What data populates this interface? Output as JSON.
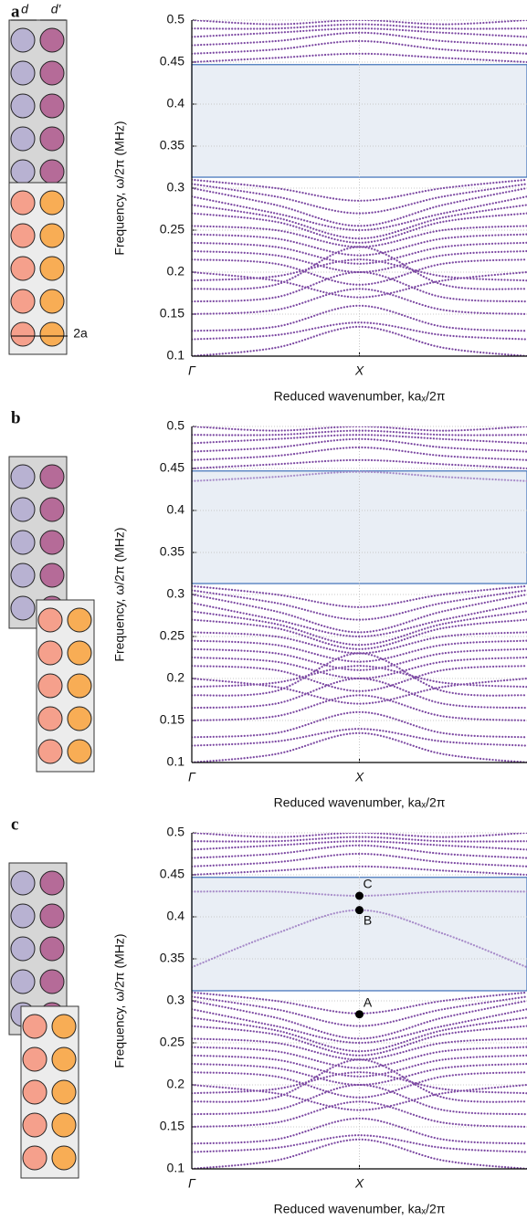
{
  "schematic": {
    "d": "d",
    "d_prime": "d′",
    "width": "2a"
  },
  "chart_data": [
    {
      "type": "band",
      "panel_label": "a",
      "y_label": "Frequency, ω/2π (MHz)",
      "x_label": "Reduced wavenumber, kaₓ/2π",
      "color": "#7d4aa3",
      "gap_color": "#e9eef5",
      "gap_edge": "#3d6fb8",
      "band_gap": [
        0.313,
        0.447
      ],
      "xlim": [
        0,
        1
      ],
      "ylim": [
        0.1,
        0.5
      ],
      "xticks": [
        {
          "value": 0,
          "label": "Γ"
        },
        {
          "value": 0.5,
          "label": "X"
        }
      ],
      "yticks": [
        0.1,
        0.15,
        0.2,
        0.25,
        0.3,
        0.35,
        0.4,
        0.45,
        0.5
      ],
      "grid": true,
      "x": [
        0,
        0.25,
        0.5,
        0.75,
        1
      ],
      "series": [
        {
          "values": [
            0.31,
            0.3,
            0.285,
            0.3,
            0.31
          ]
        },
        {
          "values": [
            0.305,
            0.29,
            0.27,
            0.29,
            0.305
          ]
        },
        {
          "values": [
            0.3,
            0.28,
            0.255,
            0.28,
            0.3
          ]
        },
        {
          "values": [
            0.29,
            0.27,
            0.25,
            0.27,
            0.29
          ]
        },
        {
          "values": [
            0.28,
            0.265,
            0.24,
            0.265,
            0.28
          ]
        },
        {
          "values": [
            0.27,
            0.26,
            0.235,
            0.26,
            0.27
          ]
        },
        {
          "values": [
            0.255,
            0.25,
            0.23,
            0.25,
            0.255
          ]
        },
        {
          "values": [
            0.245,
            0.24,
            0.22,
            0.24,
            0.245
          ]
        },
        {
          "values": [
            0.235,
            0.23,
            0.21,
            0.23,
            0.235
          ]
        },
        {
          "values": [
            0.225,
            0.22,
            0.2,
            0.22,
            0.225
          ]
        },
        {
          "values": [
            0.215,
            0.21,
            0.185,
            0.21,
            0.215
          ]
        },
        {
          "values": [
            0.2,
            0.19,
            0.17,
            0.19,
            0.2
          ]
        },
        {
          "values": [
            0.19,
            0.195,
            0.215,
            0.195,
            0.19
          ]
        },
        {
          "values": [
            0.18,
            0.185,
            0.23,
            0.185,
            0.18
          ]
        },
        {
          "values": [
            0.165,
            0.17,
            0.2,
            0.17,
            0.165
          ]
        },
        {
          "values": [
            0.15,
            0.155,
            0.18,
            0.155,
            0.15
          ]
        },
        {
          "values": [
            0.13,
            0.135,
            0.16,
            0.135,
            0.13
          ]
        },
        {
          "values": [
            0.12,
            0.125,
            0.14,
            0.125,
            0.12
          ]
        },
        {
          "values": [
            0.1,
            0.11,
            0.135,
            0.11,
            0.1
          ]
        },
        {
          "values": [
            0.45,
            0.455,
            0.46,
            0.455,
            0.45
          ]
        },
        {
          "values": [
            0.46,
            0.465,
            0.475,
            0.465,
            0.46
          ]
        },
        {
          "values": [
            0.47,
            0.475,
            0.485,
            0.475,
            0.47
          ]
        },
        {
          "values": [
            0.48,
            0.485,
            0.49,
            0.485,
            0.48
          ]
        },
        {
          "values": [
            0.49,
            0.49,
            0.495,
            0.49,
            0.49
          ]
        },
        {
          "values": [
            0.5,
            0.495,
            0.5,
            0.495,
            0.5
          ]
        }
      ]
    },
    {
      "type": "band",
      "panel_label": "b",
      "y_label": "Frequency, ω/2π (MHz)",
      "x_label": "Reduced wavenumber, kaₓ/2π",
      "color": "#7d4aa3",
      "gap_color": "#e9eef5",
      "gap_edge": "#3d6fb8",
      "band_gap": [
        0.313,
        0.447
      ],
      "xlim": [
        0,
        1
      ],
      "ylim": [
        0.1,
        0.5
      ],
      "xticks": [
        {
          "value": 0,
          "label": "Γ"
        },
        {
          "value": 0.5,
          "label": "X"
        }
      ],
      "yticks": [
        0.1,
        0.15,
        0.2,
        0.25,
        0.3,
        0.35,
        0.4,
        0.45,
        0.5
      ],
      "grid": true,
      "x": [
        0,
        0.25,
        0.5,
        0.75,
        1
      ],
      "series": [
        {
          "values": [
            0.31,
            0.3,
            0.285,
            0.3,
            0.31
          ]
        },
        {
          "values": [
            0.305,
            0.29,
            0.27,
            0.29,
            0.305
          ]
        },
        {
          "values": [
            0.3,
            0.28,
            0.255,
            0.28,
            0.3
          ]
        },
        {
          "values": [
            0.29,
            0.27,
            0.25,
            0.27,
            0.29
          ]
        },
        {
          "values": [
            0.28,
            0.265,
            0.24,
            0.265,
            0.28
          ]
        },
        {
          "values": [
            0.27,
            0.26,
            0.235,
            0.26,
            0.27
          ]
        },
        {
          "values": [
            0.255,
            0.25,
            0.23,
            0.25,
            0.255
          ]
        },
        {
          "values": [
            0.245,
            0.24,
            0.22,
            0.24,
            0.245
          ]
        },
        {
          "values": [
            0.235,
            0.23,
            0.21,
            0.23,
            0.235
          ]
        },
        {
          "values": [
            0.225,
            0.22,
            0.2,
            0.22,
            0.225
          ]
        },
        {
          "values": [
            0.215,
            0.21,
            0.185,
            0.21,
            0.215
          ]
        },
        {
          "values": [
            0.2,
            0.19,
            0.17,
            0.19,
            0.2
          ]
        },
        {
          "values": [
            0.19,
            0.195,
            0.215,
            0.195,
            0.19
          ]
        },
        {
          "values": [
            0.18,
            0.185,
            0.23,
            0.185,
            0.18
          ]
        },
        {
          "values": [
            0.165,
            0.17,
            0.2,
            0.17,
            0.165
          ]
        },
        {
          "values": [
            0.15,
            0.155,
            0.18,
            0.155,
            0.15
          ]
        },
        {
          "values": [
            0.13,
            0.135,
            0.16,
            0.135,
            0.13
          ]
        },
        {
          "values": [
            0.12,
            0.125,
            0.14,
            0.125,
            0.12
          ]
        },
        {
          "values": [
            0.1,
            0.11,
            0.135,
            0.11,
            0.1
          ]
        },
        {
          "values": [
            0.45,
            0.455,
            0.46,
            0.455,
            0.45
          ]
        },
        {
          "values": [
            0.46,
            0.465,
            0.475,
            0.465,
            0.46
          ]
        },
        {
          "values": [
            0.47,
            0.475,
            0.485,
            0.475,
            0.47
          ]
        },
        {
          "values": [
            0.48,
            0.485,
            0.49,
            0.485,
            0.48
          ]
        },
        {
          "values": [
            0.49,
            0.49,
            0.495,
            0.49,
            0.49
          ]
        },
        {
          "values": [
            0.5,
            0.495,
            0.5,
            0.495,
            0.5
          ]
        },
        {
          "color": "#a78bc9",
          "values": [
            0.435,
            0.44,
            0.446,
            0.44,
            0.435
          ]
        }
      ]
    },
    {
      "type": "band",
      "panel_label": "c",
      "y_label": "Frequency, ω/2π (MHz)",
      "x_label": "Reduced wavenumber, kaₓ/2π",
      "color": "#7d4aa3",
      "gap_color": "#e9eef5",
      "gap_edge": "#3d6fb8",
      "band_gap": [
        0.312,
        0.447
      ],
      "xlim": [
        0,
        1
      ],
      "ylim": [
        0.1,
        0.5
      ],
      "xticks": [
        {
          "value": 0,
          "label": "Γ"
        },
        {
          "value": 0.5,
          "label": "X"
        }
      ],
      "yticks": [
        0.1,
        0.15,
        0.2,
        0.25,
        0.3,
        0.35,
        0.4,
        0.45,
        0.5
      ],
      "grid": true,
      "x": [
        0,
        0.25,
        0.5,
        0.75,
        1
      ],
      "series": [
        {
          "values": [
            0.31,
            0.3,
            0.285,
            0.3,
            0.31
          ]
        },
        {
          "values": [
            0.305,
            0.29,
            0.27,
            0.29,
            0.305
          ]
        },
        {
          "values": [
            0.3,
            0.28,
            0.255,
            0.28,
            0.3
          ]
        },
        {
          "values": [
            0.29,
            0.27,
            0.25,
            0.27,
            0.29
          ]
        },
        {
          "values": [
            0.28,
            0.265,
            0.24,
            0.265,
            0.28
          ]
        },
        {
          "values": [
            0.27,
            0.26,
            0.235,
            0.26,
            0.27
          ]
        },
        {
          "values": [
            0.255,
            0.25,
            0.23,
            0.25,
            0.255
          ]
        },
        {
          "values": [
            0.245,
            0.24,
            0.22,
            0.24,
            0.245
          ]
        },
        {
          "values": [
            0.235,
            0.23,
            0.21,
            0.23,
            0.235
          ]
        },
        {
          "values": [
            0.225,
            0.22,
            0.2,
            0.22,
            0.225
          ]
        },
        {
          "values": [
            0.215,
            0.21,
            0.185,
            0.21,
            0.215
          ]
        },
        {
          "values": [
            0.2,
            0.19,
            0.17,
            0.19,
            0.2
          ]
        },
        {
          "values": [
            0.19,
            0.195,
            0.215,
            0.195,
            0.19
          ]
        },
        {
          "values": [
            0.18,
            0.185,
            0.23,
            0.185,
            0.18
          ]
        },
        {
          "values": [
            0.165,
            0.17,
            0.2,
            0.17,
            0.165
          ]
        },
        {
          "values": [
            0.15,
            0.155,
            0.18,
            0.155,
            0.15
          ]
        },
        {
          "values": [
            0.13,
            0.135,
            0.16,
            0.135,
            0.13
          ]
        },
        {
          "values": [
            0.12,
            0.125,
            0.14,
            0.125,
            0.12
          ]
        },
        {
          "values": [
            0.1,
            0.11,
            0.135,
            0.11,
            0.1
          ]
        },
        {
          "values": [
            0.45,
            0.455,
            0.46,
            0.455,
            0.45
          ]
        },
        {
          "values": [
            0.46,
            0.465,
            0.475,
            0.465,
            0.46
          ]
        },
        {
          "values": [
            0.47,
            0.475,
            0.485,
            0.475,
            0.47
          ]
        },
        {
          "values": [
            0.48,
            0.485,
            0.49,
            0.485,
            0.48
          ]
        },
        {
          "values": [
            0.49,
            0.49,
            0.495,
            0.49,
            0.49
          ]
        },
        {
          "values": [
            0.5,
            0.495,
            0.5,
            0.495,
            0.5
          ]
        },
        {
          "color": "#a78bc9",
          "values": [
            0.43,
            0.43,
            0.425,
            0.43,
            0.43
          ]
        },
        {
          "color": "#a78bc9",
          "values": [
            0.34,
            0.38,
            0.408,
            0.38,
            0.34
          ]
        }
      ],
      "annotations": [
        {
          "label": "A",
          "x": 0.5,
          "y": 0.284
        },
        {
          "label": "B",
          "x": 0.5,
          "y": 0.408
        },
        {
          "label": "C",
          "x": 0.5,
          "y": 0.425
        }
      ]
    }
  ]
}
